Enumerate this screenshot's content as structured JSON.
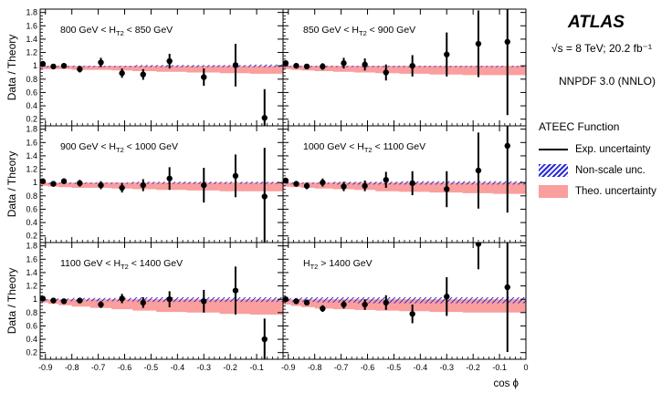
{
  "header": {
    "brand": "ATLAS",
    "energy_text": "√s = 8 TeV; 20.2 fb⁻¹",
    "pdf_text": "NNPDF 3.0 (NNLO)"
  },
  "legend": {
    "title": "ATEEC Function",
    "entries": [
      {
        "label": "Exp. uncertainty",
        "style": "line"
      },
      {
        "label": "Non-scale unc.",
        "style": "hatch"
      },
      {
        "label": "Theo. uncertainty",
        "style": "band"
      }
    ]
  },
  "colors": {
    "theo_band": "#fa9e9e",
    "nonscale_hatch": "#2b2bd6",
    "points": "#000000"
  },
  "chart_data": {
    "type": "scatter",
    "ylabel": "Data / Theory",
    "xlabel": "cos ϕ",
    "xlim": [
      -0.92,
      0.0
    ],
    "ylim": [
      0.1,
      1.85
    ],
    "yticks": [
      0.2,
      0.4,
      0.6,
      0.8,
      1,
      1.2,
      1.4,
      1.6,
      1.8
    ],
    "ytick_labels": [
      "0.2",
      "0.4",
      "0.6",
      "0.8",
      "1",
      "1.2",
      "1.4",
      "1.6",
      "1.8"
    ],
    "xticks": [
      -0.9,
      -0.8,
      -0.7,
      -0.6,
      -0.5,
      -0.4,
      -0.3,
      -0.2,
      -0.1
    ],
    "xtick_labels_left": [
      "-0.9",
      "-0.8",
      "-0.7",
      "-0.6",
      "-0.5",
      "-0.4",
      "-0.3",
      "-0.2",
      "-0.1"
    ],
    "xtick_labels_right": [
      "-0.9",
      "-0.8",
      "-0.7",
      "-0.6",
      "-0.5",
      "-0.4",
      "-0.3",
      "-0.2",
      "-0.1",
      "0"
    ],
    "x": [
      -0.91,
      -0.87,
      -0.83,
      -0.77,
      -0.69,
      -0.61,
      -0.53,
      -0.43,
      -0.3,
      -0.18,
      -0.07
    ],
    "panels": [
      {
        "label": "800 GeV < H_T2 < 850 GeV",
        "label_main": "800 GeV < H",
        "label_sub": "T2",
        "label_tail": " < 850 GeV",
        "y": [
          1.03,
          0.99,
          1.0,
          0.95,
          1.05,
          0.89,
          0.87,
          1.07,
          0.83,
          1.01,
          0.22
        ],
        "err": [
          0.03,
          0.03,
          0.04,
          0.05,
          0.07,
          0.07,
          0.08,
          0.11,
          0.13,
          0.32,
          0.43
        ],
        "band_lo": [
          0.95,
          0.95,
          0.95,
          0.94,
          0.94,
          0.93,
          0.92,
          0.91,
          0.9,
          0.89,
          0.88
        ],
        "band_hi": [
          1.0,
          1.0,
          1.0,
          1.0,
          1.0,
          1.0,
          1.0,
          1.0,
          1.0,
          1.0,
          1.0
        ],
        "hatch_lo": [
          0.98,
          0.98,
          0.98,
          0.98,
          0.98,
          0.98,
          0.98,
          0.98,
          0.98,
          0.98,
          0.98
        ],
        "hatch_hi": [
          1.0,
          1.0,
          1.0,
          1.0,
          1.0,
          1.0,
          1.01,
          1.01,
          1.01,
          1.01,
          1.02
        ]
      },
      {
        "label": "850 GeV < H_T2 < 900 GeV",
        "label_main": "850 GeV < H",
        "label_sub": "T2",
        "label_tail": " < 900 GeV",
        "y": [
          1.04,
          1.0,
          0.99,
          0.99,
          1.04,
          1.02,
          0.9,
          1.0,
          1.17,
          1.33,
          1.36
        ],
        "err": [
          0.03,
          0.04,
          0.04,
          0.05,
          0.08,
          0.09,
          0.12,
          0.16,
          0.33,
          0.5,
          1.1
        ],
        "band_lo": [
          0.95,
          0.94,
          0.93,
          0.92,
          0.91,
          0.9,
          0.89,
          0.88,
          0.87,
          0.86,
          0.86
        ],
        "band_hi": [
          1.0,
          1.0,
          1.0,
          1.0,
          1.0,
          1.0,
          1.0,
          1.0,
          1.0,
          1.0,
          1.0
        ],
        "hatch_lo": [
          0.98,
          0.98,
          0.98,
          0.98,
          0.98,
          0.98,
          0.98,
          0.98,
          0.98,
          0.98,
          0.98
        ],
        "hatch_hi": [
          1.0,
          1.0,
          1.0,
          1.0,
          1.0,
          1.0,
          1.0,
          1.0,
          1.0,
          1.0,
          1.0
        ]
      },
      {
        "label": "900 GeV < H_T2 < 1000 GeV",
        "label_main": "900 GeV < H",
        "label_sub": "T2",
        "label_tail": " < 1000 GeV",
        "y": [
          1.02,
          0.98,
          1.02,
          0.99,
          0.96,
          0.92,
          0.96,
          1.06,
          0.96,
          1.1,
          0.79
        ],
        "err": [
          0.03,
          0.03,
          0.04,
          0.05,
          0.06,
          0.07,
          0.09,
          0.17,
          0.26,
          0.32,
          0.73
        ],
        "band_lo": [
          0.95,
          0.94,
          0.93,
          0.92,
          0.92,
          0.91,
          0.9,
          0.89,
          0.88,
          0.87,
          0.87
        ],
        "band_hi": [
          1.0,
          1.0,
          1.0,
          1.0,
          1.0,
          1.0,
          1.0,
          1.0,
          1.0,
          1.0,
          1.0
        ],
        "hatch_lo": [
          0.98,
          0.98,
          0.98,
          0.98,
          0.98,
          0.98,
          0.98,
          0.98,
          0.98,
          0.98,
          0.98
        ],
        "hatch_hi": [
          1.0,
          1.0,
          1.0,
          1.0,
          1.0,
          1.0,
          1.01,
          1.01,
          1.01,
          1.01,
          1.01
        ]
      },
      {
        "label": "1000 GeV < H_T2 < 1100 GeV",
        "label_main": "1000 GeV < H",
        "label_sub": "T2",
        "label_tail": " < 1100 GeV",
        "y": [
          1.03,
          0.98,
          0.95,
          1.0,
          0.94,
          0.95,
          1.04,
          0.99,
          0.9,
          1.18,
          1.55
        ],
        "err": [
          0.03,
          0.04,
          0.05,
          0.06,
          0.07,
          0.08,
          0.12,
          0.18,
          0.27,
          0.57,
          1.0
        ],
        "band_lo": [
          0.94,
          0.93,
          0.92,
          0.91,
          0.9,
          0.89,
          0.87,
          0.86,
          0.85,
          0.84,
          0.83
        ],
        "band_hi": [
          1.0,
          1.0,
          1.0,
          1.0,
          1.0,
          1.0,
          1.0,
          1.0,
          1.0,
          1.0,
          1.0
        ],
        "hatch_lo": [
          0.98,
          0.98,
          0.98,
          0.98,
          0.97,
          0.97,
          0.97,
          0.97,
          0.97,
          0.97,
          0.97
        ],
        "hatch_hi": [
          1.0,
          1.0,
          1.0,
          1.0,
          1.01,
          1.01,
          1.01,
          1.02,
          1.02,
          1.02,
          1.02
        ]
      },
      {
        "label": "1100 GeV < H_T2 < 1400 GeV",
        "label_main": "1100 GeV < H",
        "label_sub": "T2",
        "label_tail": " < 1400 GeV",
        "y": [
          1.01,
          0.98,
          0.97,
          0.98,
          0.92,
          1.01,
          0.95,
          1.0,
          0.97,
          1.13,
          0.4
        ],
        "err": [
          0.02,
          0.02,
          0.03,
          0.03,
          0.05,
          0.07,
          0.08,
          0.12,
          0.17,
          0.36,
          0.31
        ],
        "band_lo": [
          0.95,
          0.93,
          0.91,
          0.89,
          0.87,
          0.85,
          0.83,
          0.81,
          0.8,
          0.78,
          0.77
        ],
        "band_hi": [
          1.0,
          1.0,
          1.0,
          1.0,
          1.0,
          1.0,
          1.0,
          1.0,
          1.0,
          1.0,
          1.0
        ],
        "hatch_lo": [
          0.98,
          0.98,
          0.97,
          0.97,
          0.97,
          0.97,
          0.96,
          0.96,
          0.96,
          0.96,
          0.96
        ],
        "hatch_hi": [
          1.0,
          1.01,
          1.01,
          1.02,
          1.02,
          1.02,
          1.03,
          1.03,
          1.03,
          1.03,
          1.03
        ]
      },
      {
        "label": "H_T2 > 1400 GeV",
        "label_main": "H",
        "label_sub": "T2",
        "label_tail": " > 1400 GeV",
        "y": [
          1.0,
          0.97,
          0.95,
          0.86,
          0.92,
          0.92,
          0.95,
          0.78,
          1.04,
          1.83,
          1.18
        ],
        "err": [
          0.03,
          0.03,
          0.04,
          0.05,
          0.06,
          0.08,
          0.11,
          0.14,
          0.29,
          0.38,
          0.97
        ],
        "band_lo": [
          0.92,
          0.9,
          0.88,
          0.86,
          0.85,
          0.84,
          0.83,
          0.82,
          0.81,
          0.8,
          0.8
        ],
        "band_hi": [
          1.0,
          1.0,
          1.0,
          1.0,
          1.0,
          1.0,
          1.0,
          1.0,
          1.0,
          1.0,
          1.0
        ],
        "hatch_lo": [
          0.97,
          0.96,
          0.96,
          0.95,
          0.95,
          0.94,
          0.94,
          0.94,
          0.94,
          0.94,
          0.94
        ],
        "hatch_hi": [
          1.01,
          1.02,
          1.03,
          1.03,
          1.03,
          1.03,
          1.03,
          1.03,
          1.03,
          1.03,
          1.03
        ]
      }
    ]
  }
}
